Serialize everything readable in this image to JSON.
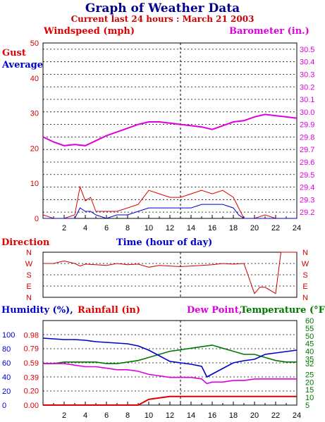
{
  "header": {
    "title": "Graph of Weather Data",
    "subtitle": "Current last 24 hours : March 21 2003"
  },
  "colors": {
    "gust": "#dd0000",
    "average": "#0000cc",
    "barometer": "#dd00dd",
    "direction": "#cc0000",
    "humidity": "#0000cc",
    "rainfall": "#dd0000",
    "dewpoint": "#dd00dd",
    "temperature": "#007700"
  },
  "chart_data": [
    {
      "type": "line",
      "labels": {
        "windspeed": "Windspeed (mph)",
        "barometer": "Barometer (in.)",
        "gust": "Gust",
        "average": "Average",
        "xlabel": "Time (hour of day)"
      },
      "x_ticks": [
        "2",
        "4",
        "6",
        "8",
        "10",
        "12",
        "14",
        "16",
        "18",
        "20",
        "22",
        "24"
      ],
      "xlim": [
        0,
        24
      ],
      "y_left": {
        "ticks": [
          "0",
          "10",
          "20",
          "30",
          "40",
          "50"
        ],
        "lim": [
          0,
          50
        ]
      },
      "y_right": {
        "ticks": [
          "29.2",
          "29.3",
          "29.4",
          "29.5",
          "29.6",
          "29.7",
          "29.8",
          "29.9",
          "30.0",
          "30.1",
          "30.2",
          "30.3",
          "30.4",
          "30.5"
        ],
        "lim": [
          29.15,
          30.55
        ]
      },
      "series": [
        {
          "name": "Barometer (in.)",
          "axis": "right",
          "x": [
            0,
            1,
            2,
            3,
            4,
            5,
            6,
            7,
            8,
            9,
            10,
            11,
            12,
            13,
            14,
            15,
            16,
            17,
            18,
            19,
            20,
            21,
            22,
            23,
            24
          ],
          "y": [
            29.8,
            29.76,
            29.73,
            29.74,
            29.73,
            29.77,
            29.81,
            29.84,
            29.87,
            29.9,
            29.92,
            29.92,
            29.91,
            29.9,
            29.89,
            29.88,
            29.86,
            29.89,
            29.92,
            29.93,
            29.96,
            29.98,
            29.97,
            29.96,
            29.95
          ]
        },
        {
          "name": "Gust",
          "axis": "left",
          "x": [
            0,
            1,
            2,
            3,
            3.5,
            4,
            4.5,
            5,
            6,
            7,
            8,
            9,
            10,
            11,
            12,
            13,
            14,
            15,
            16,
            17,
            18,
            18.5,
            19,
            20,
            21,
            22,
            23,
            24
          ],
          "y": [
            1,
            0,
            0,
            1,
            9,
            5,
            6,
            2,
            2,
            2,
            3,
            4,
            8,
            7,
            6,
            6,
            7,
            8,
            7,
            8,
            6,
            3,
            0,
            0,
            1,
            0,
            0,
            0
          ]
        },
        {
          "name": "Average",
          "axis": "left",
          "x": [
            0,
            1,
            2,
            3,
            3.5,
            4,
            4.5,
            5,
            6,
            7,
            8,
            9,
            10,
            11,
            12,
            13,
            14,
            15,
            16,
            17,
            18,
            18.5,
            19,
            20,
            21,
            22,
            23,
            24
          ],
          "y": [
            0,
            0,
            0,
            0,
            3,
            2,
            2,
            1,
            0,
            1,
            1,
            2,
            3,
            3,
            3,
            3,
            3,
            4,
            4,
            4,
            3,
            1,
            0,
            0,
            0,
            0,
            0,
            0
          ]
        }
      ]
    },
    {
      "type": "line",
      "labels": {
        "title": "Direction"
      },
      "y_ticks": [
        "N",
        "W",
        "S",
        "E",
        "N"
      ],
      "xlim": [
        0,
        24
      ],
      "series": [
        {
          "name": "Direction",
          "y_unit": "degrees",
          "x": [
            0,
            1,
            2,
            3,
            3.5,
            4,
            5,
            6,
            7,
            8,
            9,
            10,
            11,
            12,
            13,
            14,
            15,
            16,
            17,
            18,
            19,
            20,
            20.5,
            21,
            22,
            22.5,
            23,
            24
          ],
          "y": [
            270,
            270,
            290,
            270,
            250,
            265,
            260,
            255,
            270,
            260,
            265,
            240,
            255,
            250,
            245,
            250,
            255,
            260,
            270,
            265,
            270,
            30,
            80,
            80,
            30,
            360,
            360,
            360
          ]
        }
      ]
    },
    {
      "type": "line",
      "labels": {
        "humidity": "Humidity (%),",
        "rainfall": "Rainfall (in)",
        "dewpoint": "Dew Point,",
        "temperature": "Temperature (°F)"
      },
      "x_ticks": [
        "2",
        "4",
        "6",
        "8",
        "10",
        "12",
        "14",
        "16",
        "18",
        "20",
        "22",
        "24"
      ],
      "xlim": [
        0,
        24
      ],
      "y_left1": {
        "ticks": [
          "0",
          "20",
          "40",
          "60",
          "80",
          "100"
        ],
        "lim": [
          0,
          120
        ]
      },
      "y_left2": {
        "ticks": [
          "0.00",
          "0.20",
          "0.39",
          "0.59",
          "0.79",
          "0.98"
        ],
        "lim": [
          0,
          1.18
        ]
      },
      "y_right": {
        "ticks": [
          "5",
          "10",
          "15",
          "20",
          "25",
          "32",
          "35",
          "40",
          "45",
          "50",
          "55",
          "60"
        ],
        "lim": [
          5,
          60
        ]
      },
      "series": [
        {
          "name": "Humidity",
          "axis": "left1",
          "x": [
            0,
            1,
            2,
            3,
            4,
            5,
            6,
            7,
            8,
            9,
            10,
            11,
            12,
            13,
            14,
            15,
            15.5,
            16,
            17,
            18,
            19,
            20,
            21,
            22,
            23,
            24
          ],
          "y": [
            95,
            94,
            93,
            93,
            92,
            90,
            89,
            88,
            87,
            84,
            78,
            70,
            62,
            60,
            58,
            55,
            40,
            44,
            52,
            60,
            63,
            65,
            72,
            74,
            76,
            78
          ]
        },
        {
          "name": "Rainfall",
          "axis": "left2",
          "x": [
            0,
            1,
            2,
            3,
            4,
            5,
            6,
            7,
            8,
            9,
            10,
            11,
            12,
            13,
            14,
            15,
            16,
            17,
            18,
            19,
            20,
            21,
            22,
            23,
            24
          ],
          "y": [
            0,
            0,
            0,
            0,
            0,
            0,
            0,
            0,
            0,
            0,
            0.08,
            0.1,
            0.12,
            0.12,
            0.12,
            0.12,
            0.12,
            0.12,
            0.12,
            0.12,
            0.12,
            0.12,
            0.12,
            0.12,
            0.12
          ]
        },
        {
          "name": "Dew Point",
          "axis": "right",
          "x": [
            0,
            1,
            2,
            3,
            4,
            5,
            6,
            7,
            8,
            9,
            10,
            11,
            12,
            13,
            14,
            15,
            15.5,
            16,
            17,
            18,
            19,
            20,
            21,
            22,
            23,
            24
          ],
          "y": [
            32,
            32,
            32,
            31,
            30,
            30,
            29,
            28,
            28,
            27,
            25,
            24,
            23,
            23,
            23,
            22,
            19,
            20,
            20,
            21,
            21,
            22,
            22,
            22,
            22,
            22
          ]
        },
        {
          "name": "Temperature",
          "axis": "right",
          "x": [
            0,
            1,
            2,
            3,
            4,
            5,
            6,
            7,
            8,
            9,
            10,
            11,
            12,
            13,
            14,
            15,
            16,
            17,
            18,
            19,
            20,
            21,
            22,
            23,
            24
          ],
          "y": [
            32,
            32,
            33,
            33,
            33,
            33,
            32,
            32,
            33,
            34,
            36,
            38,
            40,
            41,
            42,
            43,
            44,
            42,
            40,
            38,
            38,
            36,
            34,
            33,
            33
          ]
        }
      ]
    }
  ]
}
